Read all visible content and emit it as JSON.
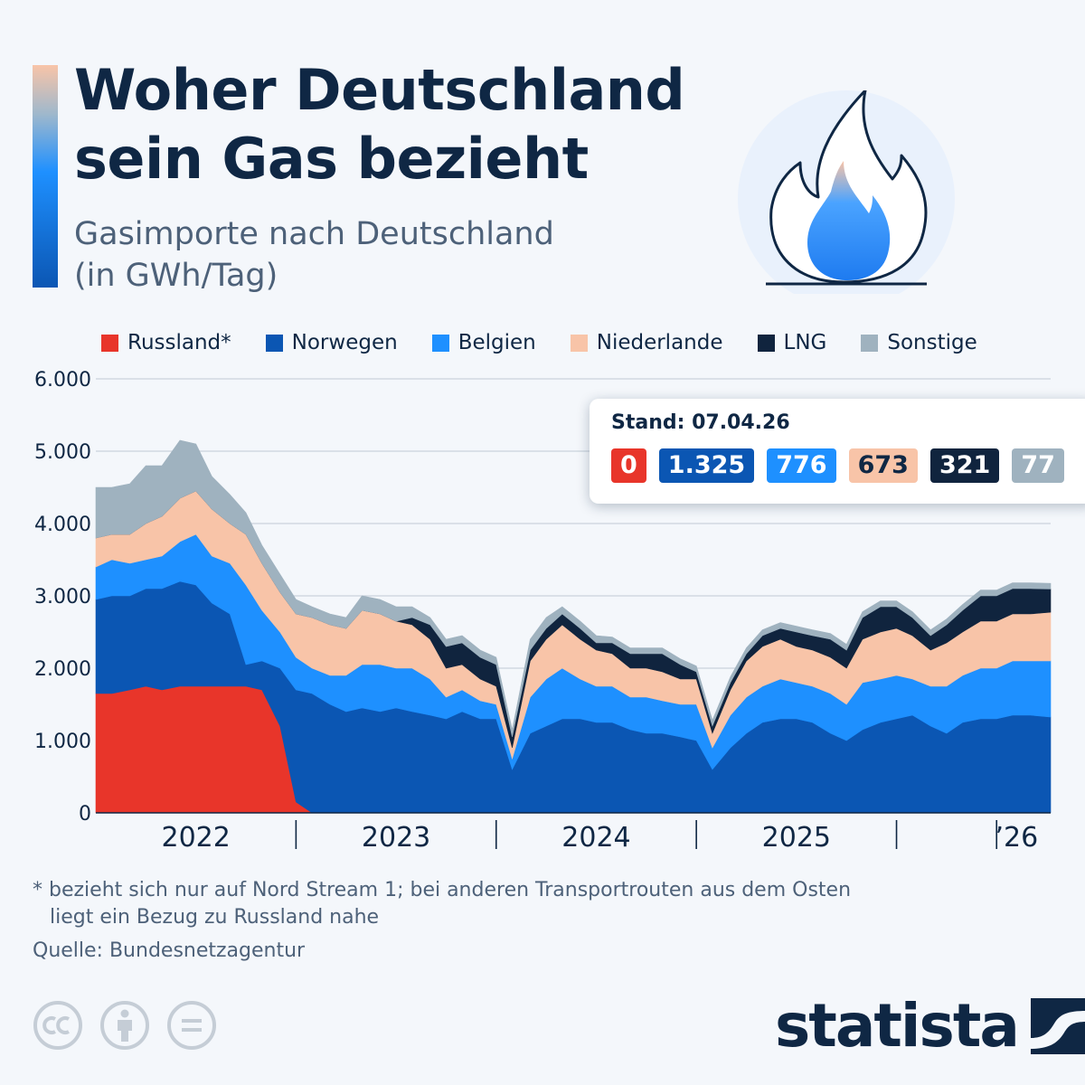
{
  "header": {
    "title_line1": "Woher Deutschland",
    "title_line2": "sein Gas bezieht",
    "subtitle_line1": "Gasimporte nach Deutschland",
    "subtitle_line2": "(in GWh/Tag)"
  },
  "icons": {
    "illustration": "gas-flame-icon",
    "brand": "statista-logo-icon"
  },
  "colors": {
    "russland": "#e8352a",
    "norwegen": "#0b56b3",
    "belgien": "#1e90ff",
    "niederlande": "#f8c4a8",
    "lng": "#10243e",
    "sonstige": "#9fb2bf"
  },
  "legend": [
    {
      "label": "Russland*",
      "color": "#e8352a"
    },
    {
      "label": "Norwegen",
      "color": "#0b56b3"
    },
    {
      "label": "Belgien",
      "color": "#1e90ff"
    },
    {
      "label": "Niederlande",
      "color": "#f8c4a8"
    },
    {
      "label": "LNG",
      "color": "#10243e"
    },
    {
      "label": "Sonstige",
      "color": "#9fb2bf"
    }
  ],
  "tooltip": {
    "title": "Stand: 07.04.26",
    "values": [
      {
        "label": "0",
        "color": "#e8352a",
        "text_color": "#ffffff"
      },
      {
        "label": "1.325",
        "color": "#0b56b3",
        "text_color": "#ffffff"
      },
      {
        "label": "776",
        "color": "#1e90ff",
        "text_color": "#ffffff"
      },
      {
        "label": "673",
        "color": "#f8c4a8",
        "text_color": "#0f2744"
      },
      {
        "label": "321",
        "color": "#10243e",
        "text_color": "#ffffff"
      },
      {
        "label": "77",
        "color": "#9fb2bf",
        "text_color": "#ffffff"
      }
    ]
  },
  "chart_data": {
    "type": "area",
    "stacked": true,
    "ylim": [
      0,
      6000
    ],
    "yticks": [
      0,
      1000,
      2000,
      3000,
      4000,
      5000,
      6000
    ],
    "ytick_labels": [
      "0",
      "1.000",
      "2.000",
      "3.000",
      "4.000",
      "5.000",
      "6.000"
    ],
    "xlim": [
      2021.5,
      2026.27
    ],
    "x_labels": [
      {
        "label": "2022",
        "x": 2022.0
      },
      {
        "label": "2023",
        "x": 2023.0
      },
      {
        "label": "2024",
        "x": 2024.0
      },
      {
        "label": "2025",
        "x": 2025.0
      },
      {
        "label": "’26",
        "x": 2026.1
      }
    ],
    "x_separators": [
      2022.5,
      2023.5,
      2024.5,
      2025.5,
      2026.0
    ],
    "grid": true,
    "legend_position": "top",
    "x": [
      2021.5,
      2021.58,
      2021.67,
      2021.75,
      2021.83,
      2021.92,
      2022.0,
      2022.08,
      2022.17,
      2022.25,
      2022.33,
      2022.42,
      2022.5,
      2022.58,
      2022.67,
      2022.75,
      2022.83,
      2022.92,
      2023.0,
      2023.08,
      2023.17,
      2023.25,
      2023.33,
      2023.42,
      2023.5,
      2023.58,
      2023.67,
      2023.75,
      2023.83,
      2023.92,
      2024.0,
      2024.08,
      2024.17,
      2024.25,
      2024.33,
      2024.42,
      2024.5,
      2024.58,
      2024.67,
      2024.75,
      2024.83,
      2024.92,
      2025.0,
      2025.08,
      2025.17,
      2025.25,
      2025.33,
      2025.42,
      2025.5,
      2025.58,
      2025.67,
      2025.75,
      2025.83,
      2025.92,
      2026.0,
      2026.08,
      2026.17,
      2026.27
    ],
    "series": [
      {
        "name": "Russland*",
        "color": "#e8352a",
        "values": [
          1650,
          1650,
          1700,
          1750,
          1700,
          1750,
          1750,
          1750,
          1750,
          1750,
          1700,
          1200,
          150,
          0,
          0,
          0,
          0,
          0,
          0,
          0,
          0,
          0,
          0,
          0,
          0,
          0,
          0,
          0,
          0,
          0,
          0,
          0,
          0,
          0,
          0,
          0,
          0,
          0,
          0,
          0,
          0,
          0,
          0,
          0,
          0,
          0,
          0,
          0,
          0,
          0,
          0,
          0,
          0,
          0,
          0,
          0,
          0,
          0
        ]
      },
      {
        "name": "Norwegen",
        "color": "#0b56b3",
        "values": [
          1300,
          1350,
          1300,
          1350,
          1400,
          1450,
          1400,
          1150,
          1000,
          300,
          400,
          800,
          1550,
          1650,
          1500,
          1400,
          1450,
          1400,
          1450,
          1400,
          1350,
          1300,
          1400,
          1300,
          1300,
          600,
          1100,
          1200,
          1300,
          1300,
          1250,
          1250,
          1150,
          1100,
          1100,
          1050,
          1000,
          600,
          900,
          1100,
          1250,
          1300,
          1300,
          1250,
          1100,
          1000,
          1150,
          1250,
          1300,
          1350,
          1200,
          1100,
          1250,
          1300,
          1300,
          1350,
          1350,
          1325
        ]
      },
      {
        "name": "Belgien",
        "color": "#1e90ff",
        "values": [
          450,
          500,
          450,
          400,
          450,
          550,
          700,
          650,
          700,
          1100,
          700,
          500,
          450,
          350,
          400,
          500,
          600,
          650,
          550,
          600,
          500,
          300,
          300,
          250,
          200,
          150,
          500,
          650,
          700,
          550,
          500,
          500,
          450,
          500,
          450,
          450,
          500,
          300,
          450,
          500,
          500,
          550,
          500,
          500,
          550,
          500,
          650,
          600,
          600,
          500,
          550,
          650,
          650,
          700,
          700,
          750,
          750,
          776
        ]
      },
      {
        "name": "Niederlande",
        "color": "#f8c4a8",
        "values": [
          400,
          350,
          400,
          500,
          550,
          600,
          600,
          650,
          550,
          700,
          650,
          550,
          600,
          700,
          700,
          650,
          750,
          700,
          650,
          600,
          550,
          400,
          350,
          300,
          250,
          150,
          500,
          550,
          600,
          550,
          500,
          450,
          400,
          400,
          400,
          350,
          350,
          200,
          350,
          500,
          550,
          550,
          500,
          500,
          500,
          500,
          600,
          650,
          650,
          600,
          500,
          600,
          600,
          650,
          650,
          650,
          650,
          673
        ]
      },
      {
        "name": "LNG",
        "color": "#10243e",
        "values": [
          0,
          0,
          0,
          0,
          0,
          0,
          0,
          0,
          0,
          0,
          0,
          0,
          0,
          0,
          0,
          0,
          0,
          0,
          0,
          100,
          200,
          300,
          300,
          300,
          300,
          150,
          150,
          150,
          150,
          150,
          100,
          150,
          200,
          200,
          250,
          200,
          100,
          100,
          100,
          100,
          150,
          150,
          200,
          200,
          250,
          250,
          300,
          350,
          300,
          250,
          200,
          250,
          300,
          350,
          350,
          350,
          350,
          321
        ]
      },
      {
        "name": "Sonstige",
        "color": "#9fb2bf",
        "values": [
          700,
          650,
          700,
          800,
          700,
          800,
          650,
          450,
          400,
          300,
          250,
          250,
          200,
          150,
          150,
          150,
          200,
          200,
          200,
          150,
          100,
          100,
          100,
          100,
          100,
          100,
          150,
          150,
          100,
          100,
          100,
          80,
          80,
          80,
          80,
          80,
          80,
          80,
          80,
          80,
          80,
          80,
          80,
          80,
          80,
          80,
          80,
          80,
          80,
          80,
          80,
          80,
          80,
          80,
          80,
          80,
          80,
          77
        ]
      }
    ]
  },
  "footer": {
    "footnote_line1": "* bezieht sich nur auf Nord Stream 1; bei anderen Transportrouten aus dem Osten",
    "footnote_line2": "liegt ein Bezug zu Russland nahe",
    "source": "Quelle: Bundesnetzagentur",
    "cc_icons": [
      "creative-commons-icon",
      "attribution-icon",
      "no-derivatives-icon"
    ],
    "brand": "statista"
  }
}
